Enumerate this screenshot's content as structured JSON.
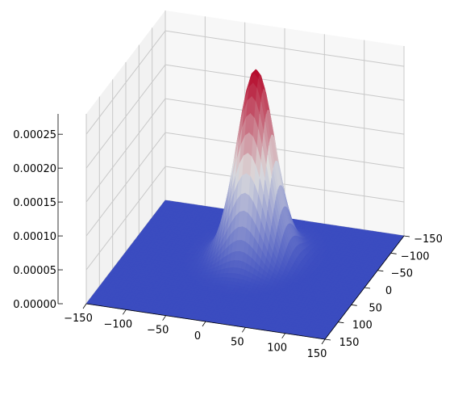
{
  "chart_data": {
    "type": "surface3d",
    "title": "",
    "xlabel": "",
    "ylabel": "",
    "zlabel": "",
    "colormap": "coolwarm",
    "color_low": "#3b4cc0",
    "color_mid": "#dddddd",
    "color_high": "#b40426",
    "pane_color": "#f2f2f2",
    "grid_color": "#c8c8c8",
    "grid": true,
    "x_ticks": [
      "−150",
      "−100",
      "−50",
      "0",
      "50",
      "100",
      "150"
    ],
    "x_tick_values": [
      -150,
      -100,
      -50,
      0,
      50,
      100,
      150
    ],
    "y_ticks": [
      "−150",
      "−100",
      "−50",
      "0",
      "50",
      "100",
      "150"
    ],
    "y_tick_values": [
      -150,
      -100,
      -50,
      0,
      50,
      100,
      150
    ],
    "z_ticks": [
      "0.00000",
      "0.00005",
      "0.00010",
      "0.00015",
      "0.00020",
      "0.00025"
    ],
    "z_tick_values": [
      0,
      5e-05,
      0.0001,
      0.00015,
      0.0002,
      0.00025
    ],
    "xlim": [
      -150,
      150
    ],
    "ylim": [
      -150,
      150
    ],
    "zlim": [
      0,
      0.00028
    ],
    "surface": {
      "function": "gaussian_2d",
      "peak_x": 0,
      "peak_y": -40,
      "peak_z": 0.000275,
      "sigma_x": 22,
      "sigma_y": 30
    }
  }
}
